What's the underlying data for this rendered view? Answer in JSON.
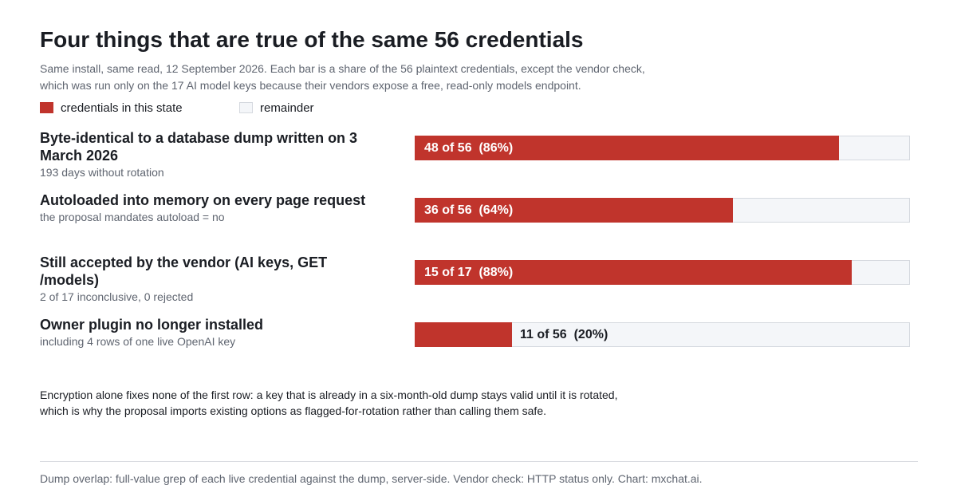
{
  "title": "Four things that are true of the same 56 credentials",
  "subtitle": "Same install, same read, 12 September 2026. Each bar is a share of the 56 plaintext credentials, except the vendor check, which was run only on the 17 AI model keys because their vendors expose a free, read-only models endpoint.",
  "legend": {
    "filled": "credentials in this state",
    "remainder": "remainder"
  },
  "colors": {
    "filled": "#c0342c",
    "remainder": "#f4f6f9"
  },
  "chart_data": {
    "type": "bar",
    "orientation": "horizontal",
    "stacked_share": true,
    "legend_position": "top-left",
    "grid": false,
    "rows": [
      {
        "label": "Byte-identical to a database dump written on 3 March 2026",
        "sublabel": "193 days without rotation",
        "value": 48,
        "total": 56,
        "display": "48 of 56  (86%)"
      },
      {
        "label": "Autoloaded into memory on every page request",
        "sublabel": "the proposal mandates autoload = no",
        "value": 36,
        "total": 56,
        "display": "36 of 56  (64%)"
      },
      {
        "label": "Still accepted by the vendor (AI keys, GET /models)",
        "sublabel": "2 of 17 inconclusive, 0 rejected",
        "value": 15,
        "total": 17,
        "display": "15 of 17  (88%)"
      },
      {
        "label": "Owner plugin no longer installed",
        "sublabel": "including 4 rows of one live OpenAI key",
        "value": 11,
        "total": 56,
        "display": "11 of 56  (20%)"
      }
    ]
  },
  "note": "Encryption alone fixes none of the first row: a key that is already in a six-month-old dump stays valid until it is rotated, which is why the proposal imports existing options as flagged-for-rotation rather than calling them safe.",
  "footer": "Dump overlap: full-value grep of each live credential against the dump, server-side. Vendor check: HTTP status only. Chart: mxchat.ai."
}
